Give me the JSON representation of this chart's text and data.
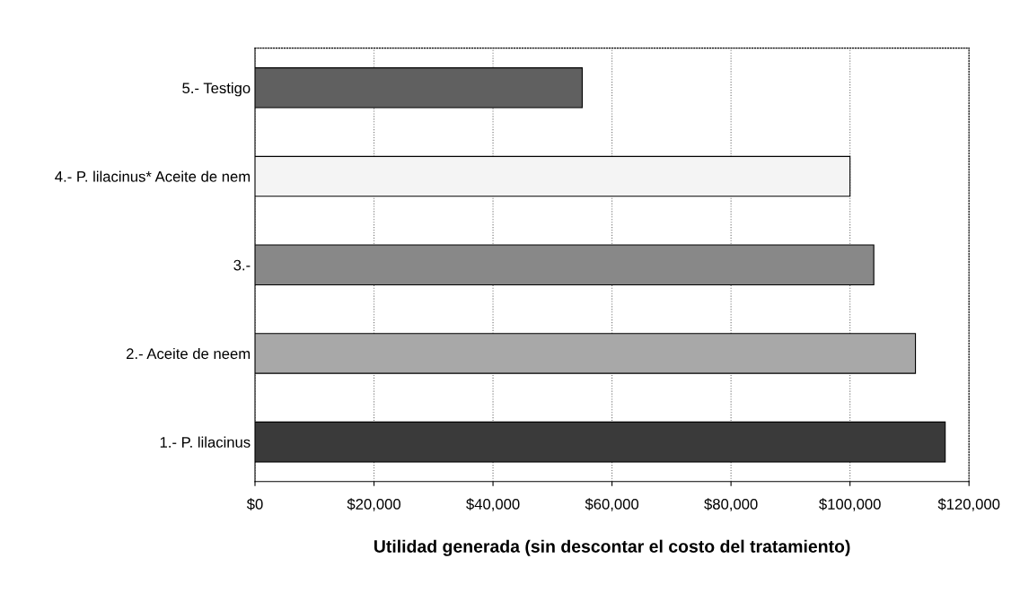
{
  "chart_data": {
    "type": "bar",
    "orientation": "horizontal",
    "xlabel": "Utilidad generada (sin descontar el costo del tratamiento)",
    "categories": [
      "5.- Testigo",
      "4.- P. lilacinus* Aceite de nem",
      "3.-",
      "2.- Aceite de neem",
      "1.- P. lilacinus"
    ],
    "values": [
      55000,
      100000,
      104000,
      111000,
      116000
    ],
    "colors": [
      "#606060",
      "#f4f4f4",
      "#888888",
      "#a8a8a8",
      "#3a3a3a"
    ],
    "xlim": [
      0,
      120000
    ],
    "xticks": [
      {
        "value": 0,
        "label": "$0"
      },
      {
        "value": 20000,
        "label": "$20,000"
      },
      {
        "value": 40000,
        "label": "$40,000"
      },
      {
        "value": 60000,
        "label": "$60,000"
      },
      {
        "value": 80000,
        "label": "$80,000"
      },
      {
        "value": 100000,
        "label": "$100,000"
      },
      {
        "value": 120000,
        "label": "$120,000"
      }
    ],
    "grid": "x"
  }
}
